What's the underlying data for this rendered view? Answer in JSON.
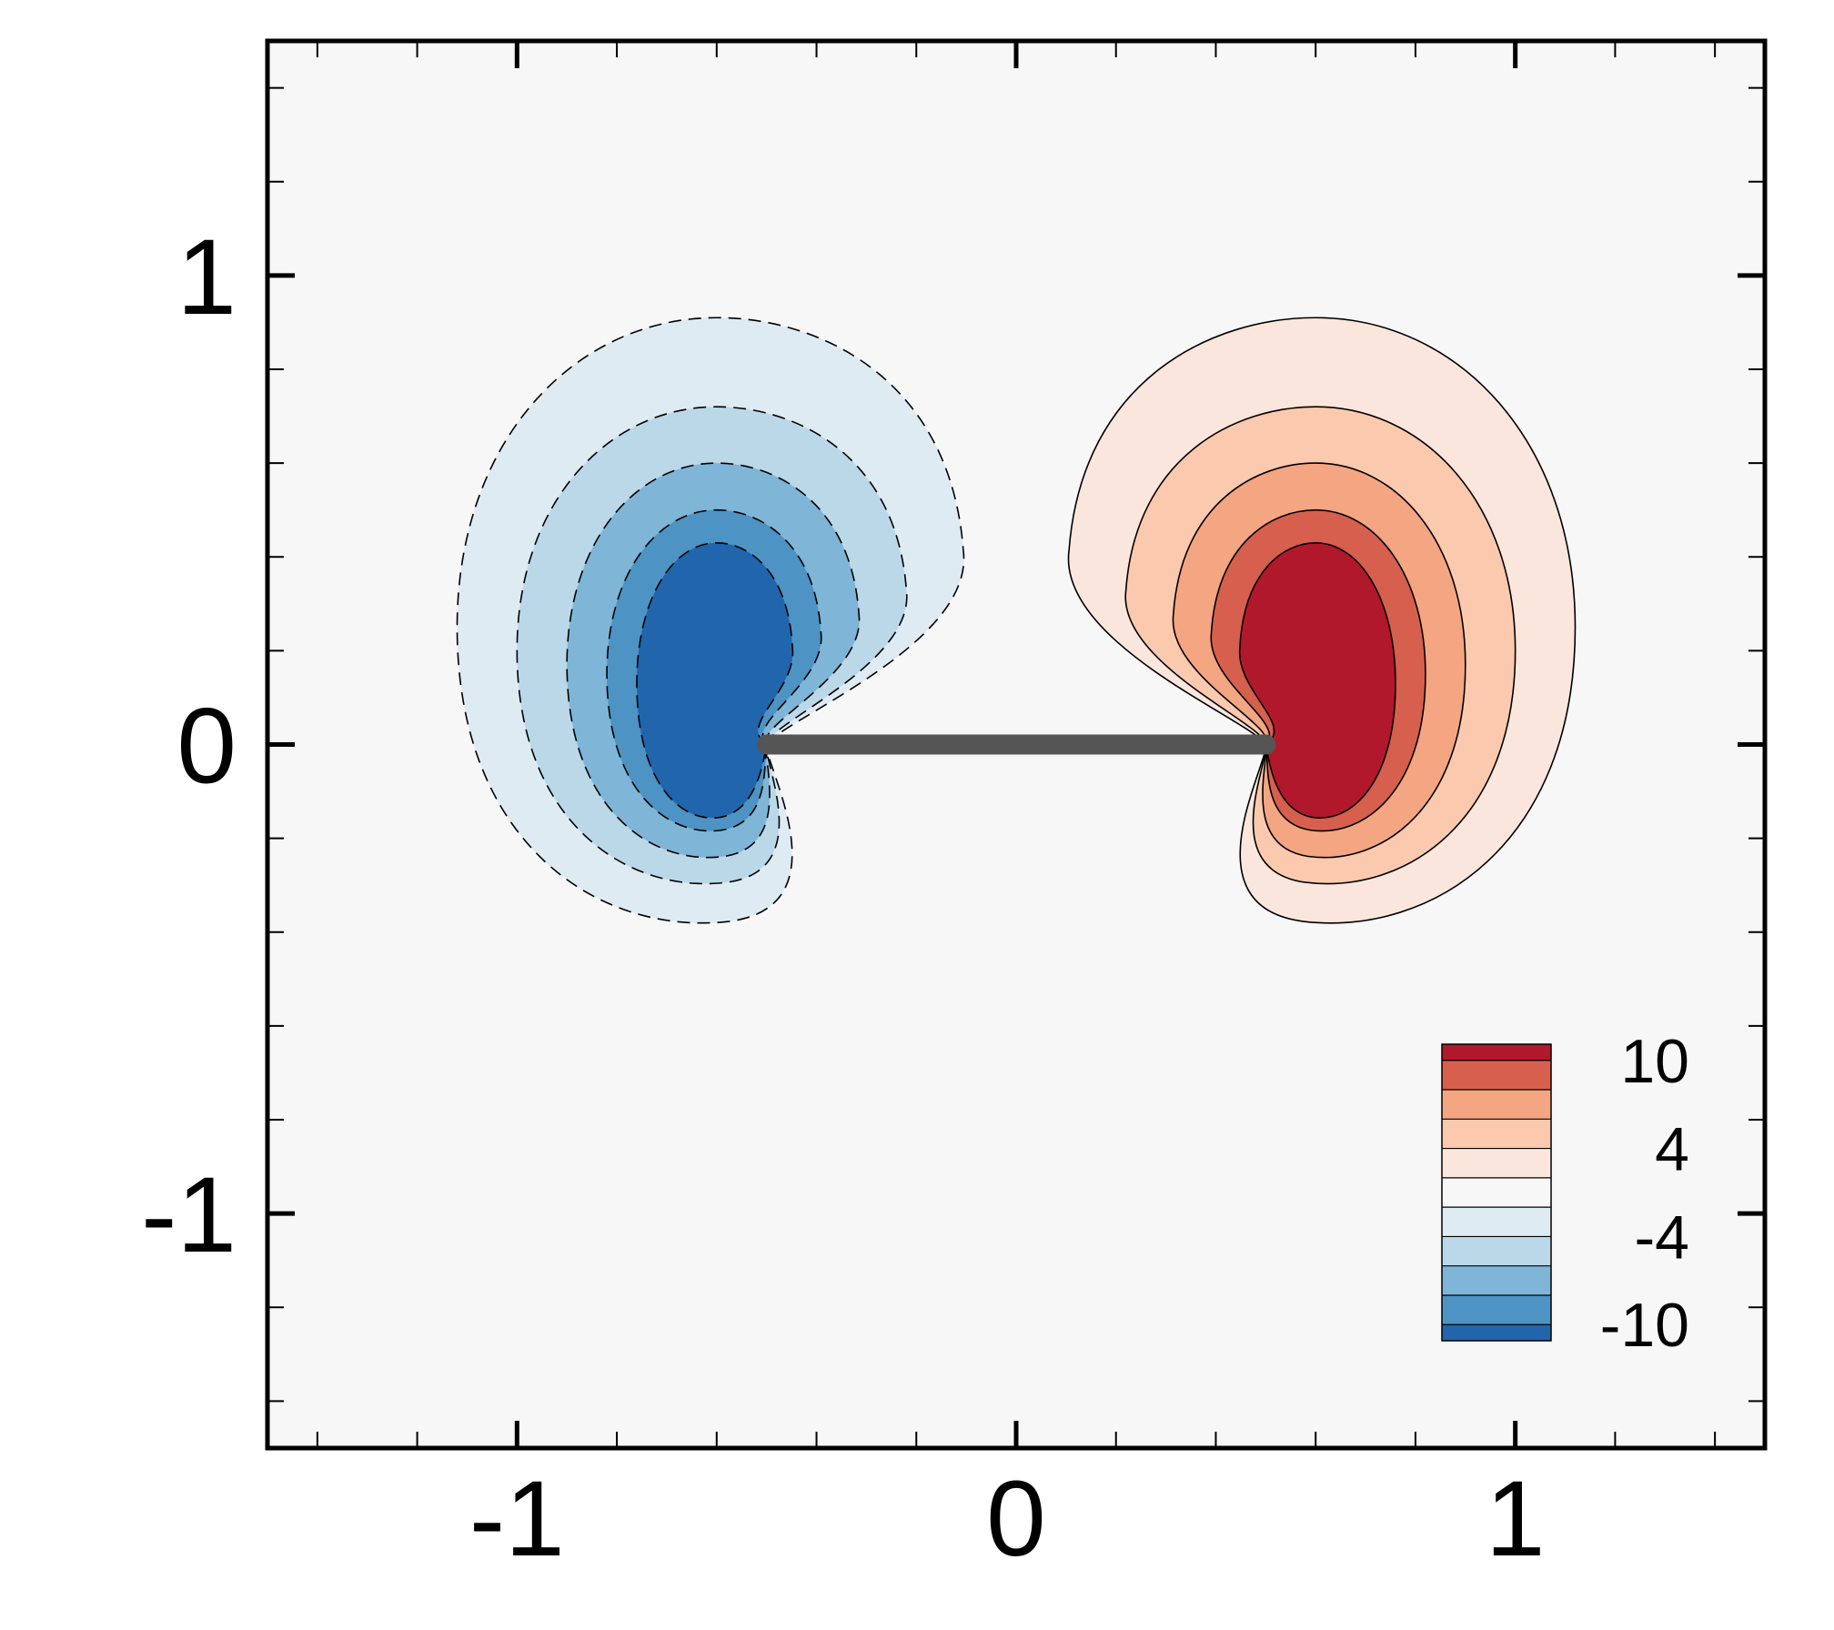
{
  "chart_data": {
    "type": "filled-contour",
    "title": "",
    "xlabel": "",
    "ylabel": "",
    "xlim": [
      -1.5,
      1.5
    ],
    "ylim": [
      -1.5,
      1.5
    ],
    "grid": false,
    "x_tick_labels": [
      {
        "value": -1,
        "label": "-1"
      },
      {
        "value": 0,
        "label": "0"
      },
      {
        "value": 1,
        "label": "1"
      }
    ],
    "y_tick_labels": [
      {
        "value": 1,
        "label": "1"
      },
      {
        "value": 0,
        "label": "0"
      },
      {
        "value": -1,
        "label": "-1"
      }
    ],
    "x_minor_ticks": [
      -1.4,
      -1.2,
      -0.8,
      -0.6,
      -0.4,
      -0.2,
      0.2,
      0.4,
      0.6,
      0.8,
      1.2,
      1.4
    ],
    "y_minor_ticks": [
      -1.4,
      -1.2,
      -0.8,
      -0.6,
      -0.4,
      -0.2,
      0.2,
      0.4,
      0.6,
      0.8,
      1.2,
      1.4
    ],
    "plate": {
      "x_start": -0.5,
      "x_end": 0.5,
      "y": 0,
      "color": "#555555"
    },
    "contour_levels": [
      -12,
      -10,
      -8,
      -6,
      -4,
      -2,
      2,
      4,
      6,
      8,
      10,
      12
    ],
    "negative_contours_dashed": true,
    "colorbar": {
      "placement": "bottom-right",
      "levels": [
        {
          "color": "#b2182b"
        },
        {
          "color": "#d6604d"
        },
        {
          "color": "#f4a582"
        },
        {
          "color": "#fbc9ae"
        },
        {
          "color": "#fae6dc"
        },
        {
          "color": "#f7f7f7"
        },
        {
          "color": "#deebf3"
        },
        {
          "color": "#bbd8e9"
        },
        {
          "color": "#7fb5d6"
        },
        {
          "color": "#4d93c3"
        },
        {
          "color": "#2166ac"
        }
      ],
      "tick_labels": [
        "10",
        "4",
        "-4",
        "-10"
      ]
    },
    "vortices": [
      {
        "sign": "negative",
        "core_center": [
          -0.6,
          0.15
        ],
        "contours": [
          {
            "level": -2,
            "color": "#deebf3",
            "peak": [
              -0.6,
              0.25
            ],
            "rx": 0.52,
            "ry": 0.66
          },
          {
            "level": -4,
            "color": "#bbd8e9",
            "peak": [
              -0.6,
              0.2
            ],
            "rx": 0.4,
            "ry": 0.52
          },
          {
            "level": -6,
            "color": "#7fb5d6",
            "peak": [
              -0.6,
              0.17
            ],
            "rx": 0.3,
            "ry": 0.43
          },
          {
            "level": -8,
            "color": "#4d93c3",
            "peak": [
              -0.6,
              0.15
            ],
            "rx": 0.22,
            "ry": 0.35
          },
          {
            "level": -10,
            "color": "#2166ac",
            "peak": [
              -0.6,
              0.13
            ],
            "rx": 0.16,
            "ry": 0.3
          }
        ]
      },
      {
        "sign": "positive",
        "core_center": [
          0.6,
          0.15
        ],
        "contours": [
          {
            "level": 2,
            "color": "#fae6dc",
            "peak": [
              0.6,
              0.25
            ],
            "rx": 0.52,
            "ry": 0.66
          },
          {
            "level": 4,
            "color": "#fbc9ae",
            "peak": [
              0.6,
              0.2
            ],
            "rx": 0.4,
            "ry": 0.52
          },
          {
            "level": 6,
            "color": "#f4a582",
            "peak": [
              0.6,
              0.17
            ],
            "rx": 0.3,
            "ry": 0.43
          },
          {
            "level": 8,
            "color": "#d6604d",
            "peak": [
              0.6,
              0.15
            ],
            "rx": 0.22,
            "ry": 0.35
          },
          {
            "level": 10,
            "color": "#b2182b",
            "peak": [
              0.6,
              0.13
            ],
            "rx": 0.16,
            "ry": 0.3
          }
        ]
      }
    ]
  }
}
